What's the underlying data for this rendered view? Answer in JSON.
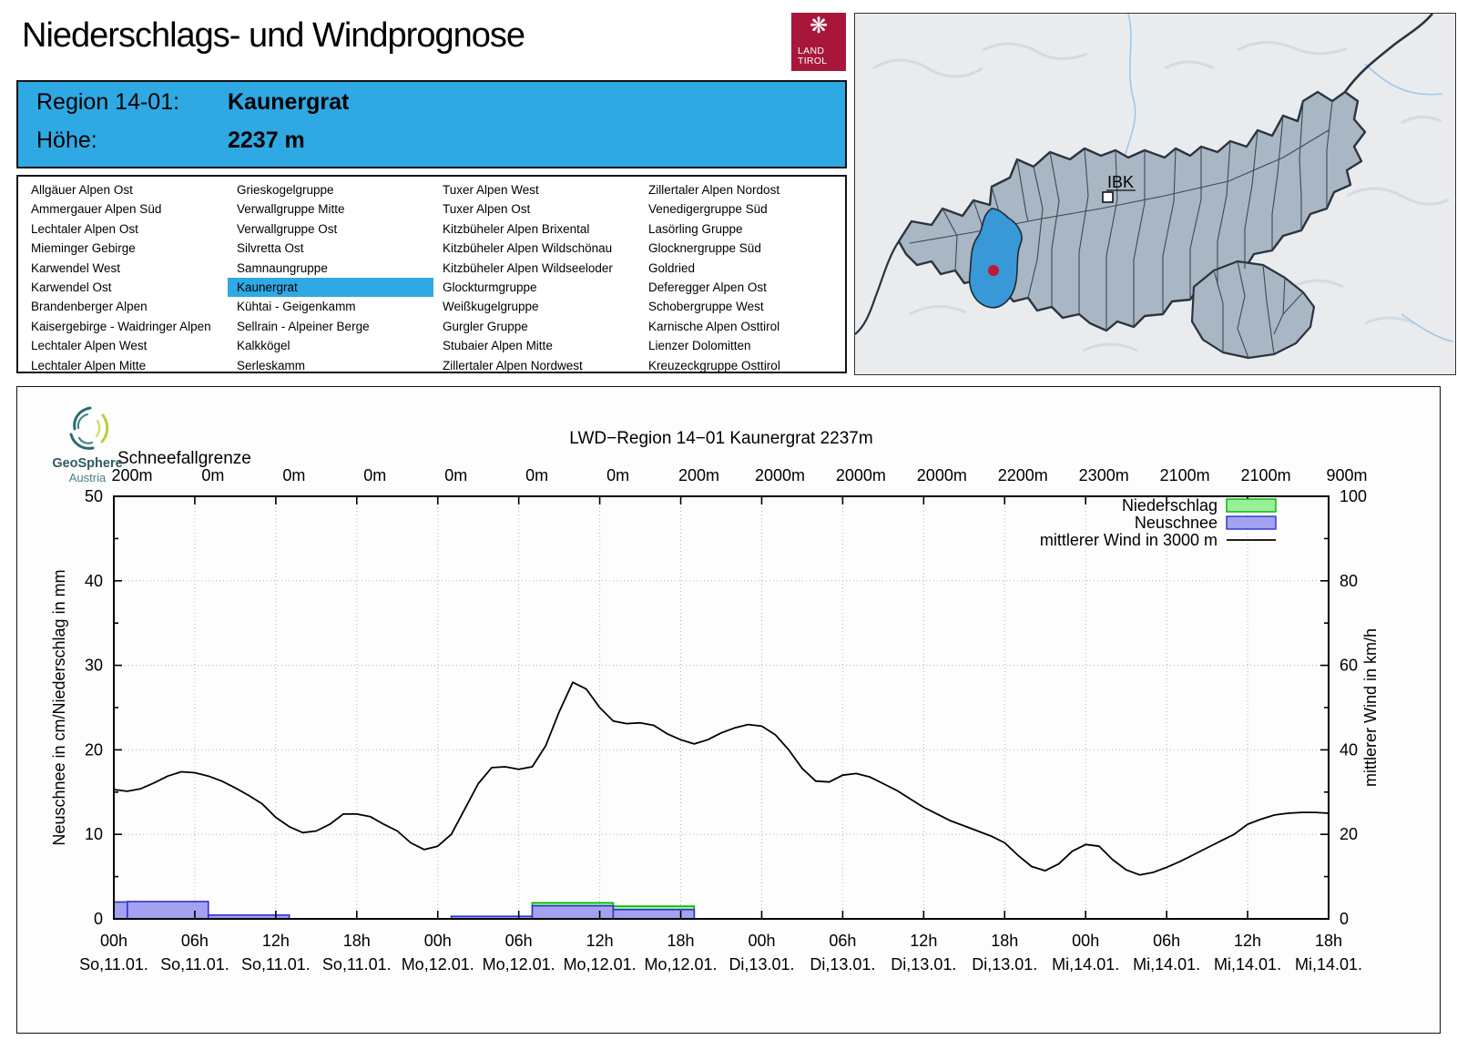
{
  "header": {
    "title": "Niederschlags- und Windprognose",
    "logo_line1": "LAND",
    "logo_line2": "TIROL"
  },
  "region_info": {
    "region_label": "Region 14-01:",
    "region_value": "Kaunergrat",
    "altitude_label": "Höhe:",
    "altitude_value": "2237 m"
  },
  "region_list": {
    "selected": "Kaunergrat",
    "columns": [
      [
        "Allgäuer Alpen Ost",
        "Ammergauer Alpen Süd",
        "Lechtaler Alpen Ost",
        "Mieminger Gebirge",
        "Karwendel West",
        "Karwendel Ost",
        "Brandenberger Alpen",
        "Kaisergebirge - Waidringer Alpen",
        "Lechtaler Alpen West",
        "Lechtaler Alpen Mitte"
      ],
      [
        "Grieskogelgruppe",
        "Verwallgruppe Mitte",
        "Verwallgruppe Ost",
        "Silvretta Ost",
        "Samnaungruppe",
        "Kaunergrat",
        "Kühtai - Geigenkamm",
        "Sellrain - Alpeiner Berge",
        "Kalkkögel",
        "Serleskamm"
      ],
      [
        "Tuxer Alpen West",
        "Tuxer Alpen Ost",
        "Kitzbüheler Alpen Brixental",
        "Kitzbüheler Alpen Wildschönau",
        "Kitzbüheler Alpen Wildseeloder",
        "Glockturmgruppe",
        "Weißkugelgruppe",
        "Gurgler Gruppe",
        "Stubaier Alpen Mitte",
        "Zillertaler Alpen Nordwest"
      ],
      [
        "Zillertaler Alpen Nordost",
        "Venedigergruppe Süd",
        "Lasörling Gruppe",
        "Glocknergruppe Süd",
        "Goldried",
        "Deferegger Alpen Ost",
        "Schobergruppe West",
        "Karnische Alpen Osttirol",
        "Lienzer Dolomitten",
        "Kreuzeckgruppe Osttirol"
      ]
    ],
    "highlight_color": "#2fa9e3"
  },
  "map": {
    "city_label": "IBK",
    "region_fill": "#a9b7c4",
    "border_color": "#2b3440",
    "highlight_fill": "#3898d8",
    "dot_color": "#c01a2e",
    "background": "#e9ebed"
  },
  "geosphere": {
    "name": "GeoSphere",
    "country": "Austria"
  },
  "chart_data": {
    "type": "line+bar",
    "title": "LWD−Region 14−01 Kaunergrat 2237m",
    "top_axis": {
      "label": "Schneefallgrenze",
      "values": [
        "200m",
        "0m",
        "0m",
        "0m",
        "0m",
        "0m",
        "0m",
        "200m",
        "2000m",
        "2000m",
        "2000m",
        "2200m",
        "2300m",
        "2100m",
        "2100m",
        "900m"
      ]
    },
    "x_axis": {
      "hours_start": 0,
      "hours_end": 90,
      "tick_step_hours": 6,
      "ticks": [
        {
          "time": "00h",
          "date": "So,11.01."
        },
        {
          "time": "06h",
          "date": "So,11.01."
        },
        {
          "time": "12h",
          "date": "So,11.01."
        },
        {
          "time": "18h",
          "date": "So,11.01."
        },
        {
          "time": "00h",
          "date": "Mo,12.01."
        },
        {
          "time": "06h",
          "date": "Mo,12.01."
        },
        {
          "time": "12h",
          "date": "Mo,12.01."
        },
        {
          "time": "18h",
          "date": "Mo,12.01."
        },
        {
          "time": "00h",
          "date": "Di,13.01."
        },
        {
          "time": "06h",
          "date": "Di,13.01."
        },
        {
          "time": "12h",
          "date": "Di,13.01."
        },
        {
          "time": "18h",
          "date": "Di,13.01."
        },
        {
          "time": "00h",
          "date": "Mi,14.01."
        },
        {
          "time": "06h",
          "date": "Mi,14.01."
        },
        {
          "time": "12h",
          "date": "Mi,14.01."
        },
        {
          "time": "18h",
          "date": "Mi,14.01."
        }
      ]
    },
    "y_left": {
      "label": "Neuschnee in cm/Niederschlag in mm",
      "min": 0,
      "max": 50,
      "ticks": [
        0,
        10,
        20,
        30,
        40,
        50
      ]
    },
    "y_right": {
      "label": "mittlerer Wind in km/h",
      "min": 0,
      "max": 100,
      "ticks": [
        0,
        20,
        40,
        60,
        80,
        100
      ]
    },
    "grid": {
      "horizontal_at_left_units": [
        10,
        20,
        30,
        40
      ],
      "vertical_every_hours": 6
    },
    "legend": [
      {
        "label": "Niederschlag",
        "type": "box",
        "fill": "#98f098",
        "stroke": "#00b400"
      },
      {
        "label": "Neuschnee",
        "type": "box",
        "fill": "#a2a2f0",
        "stroke": "#3030cc"
      },
      {
        "label": "mittlerer Wind in 3000 m",
        "type": "line",
        "stroke": "#000000"
      }
    ],
    "wind_series": {
      "name": "mittlerer Wind in 3000 m",
      "unit": "km/h",
      "axis": "right",
      "hours_step": 1,
      "values": [
        30.6,
        30.2,
        30.8,
        32.2,
        33.8,
        34.8,
        34.6,
        33.8,
        32.6,
        31.0,
        29.2,
        27.2,
        24.0,
        21.8,
        20.4,
        20.8,
        22.4,
        24.8,
        24.8,
        24.2,
        22.4,
        20.8,
        18.0,
        16.4,
        17.2,
        20.0,
        26.0,
        32.0,
        35.8,
        36.0,
        35.4,
        36.0,
        41.0,
        49.0,
        56.0,
        54.4,
        50.0,
        46.8,
        46.2,
        46.4,
        45.8,
        43.8,
        42.4,
        41.4,
        42.4,
        44.0,
        45.2,
        46.0,
        45.6,
        43.6,
        40.0,
        35.6,
        32.6,
        32.4,
        34.0,
        34.4,
        33.6,
        32.0,
        30.4,
        28.4,
        26.4,
        24.8,
        23.2,
        22.0,
        20.8,
        19.6,
        18.0,
        15.0,
        12.4,
        11.4,
        13.0,
        16.0,
        17.6,
        17.2,
        14.0,
        11.6,
        10.4,
        11.0,
        12.2,
        13.6,
        15.2,
        16.8,
        18.4,
        20.0,
        22.4,
        23.6,
        24.6,
        25.0,
        25.2,
        25.2,
        25.0
      ]
    },
    "neuschnee_bars_cm": [
      {
        "from_h": -5,
        "to_h": 1,
        "value": 2.0
      },
      {
        "from_h": 1,
        "to_h": 7,
        "value": 2.05
      },
      {
        "from_h": 7,
        "to_h": 13,
        "value": 0.45
      },
      {
        "from_h": 25,
        "to_h": 31,
        "value": 0.3
      },
      {
        "from_h": 31,
        "to_h": 37,
        "value": 1.55
      },
      {
        "from_h": 37,
        "to_h": 43,
        "value": 1.1
      }
    ],
    "niederschlag_bars_mm": [
      {
        "from_h": 31,
        "to_h": 37,
        "value": 1.9
      },
      {
        "from_h": 37,
        "to_h": 43,
        "value": 1.5
      }
    ]
  }
}
